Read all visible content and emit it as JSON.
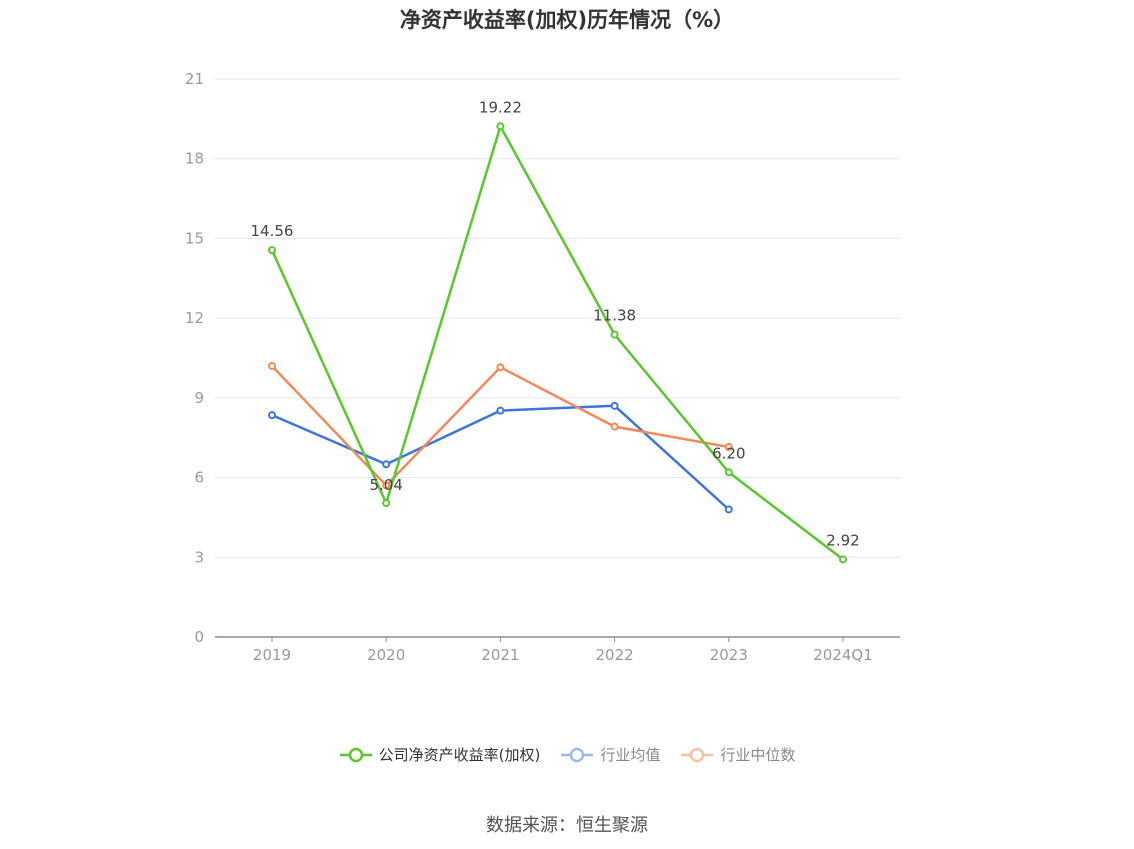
{
  "title": "净资产收益率(加权)历年情况（%）",
  "source": "数据来源：恒生聚源",
  "chart_data": {
    "type": "line",
    "title": "净资产收益率(加权)历年情况（%）",
    "categories": [
      "2019",
      "2020",
      "2021",
      "2022",
      "2023",
      "2024Q1"
    ],
    "yticks": [
      "0",
      "3",
      "6",
      "9",
      "12",
      "15",
      "18",
      "21"
    ],
    "ylim": [
      0,
      21
    ],
    "grid": true,
    "legend_position": "bottom",
    "series": [
      {
        "name": "公司净资产收益率(加权)",
        "color": "#5ac72a",
        "values": [
          14.56,
          5.04,
          19.22,
          11.38,
          6.2,
          2.92
        ],
        "labels": [
          "14.56",
          "5.04",
          "19.22",
          "11.38",
          "6.20",
          "2.92"
        ]
      },
      {
        "name": "行业均值",
        "color": "#3e74dd",
        "values": [
          8.35,
          6.5,
          8.52,
          8.7,
          4.8,
          null
        ]
      },
      {
        "name": "行业中位数",
        "color": "#f08a5a",
        "values": [
          10.2,
          5.7,
          10.15,
          7.92,
          7.15,
          null
        ]
      }
    ]
  }
}
